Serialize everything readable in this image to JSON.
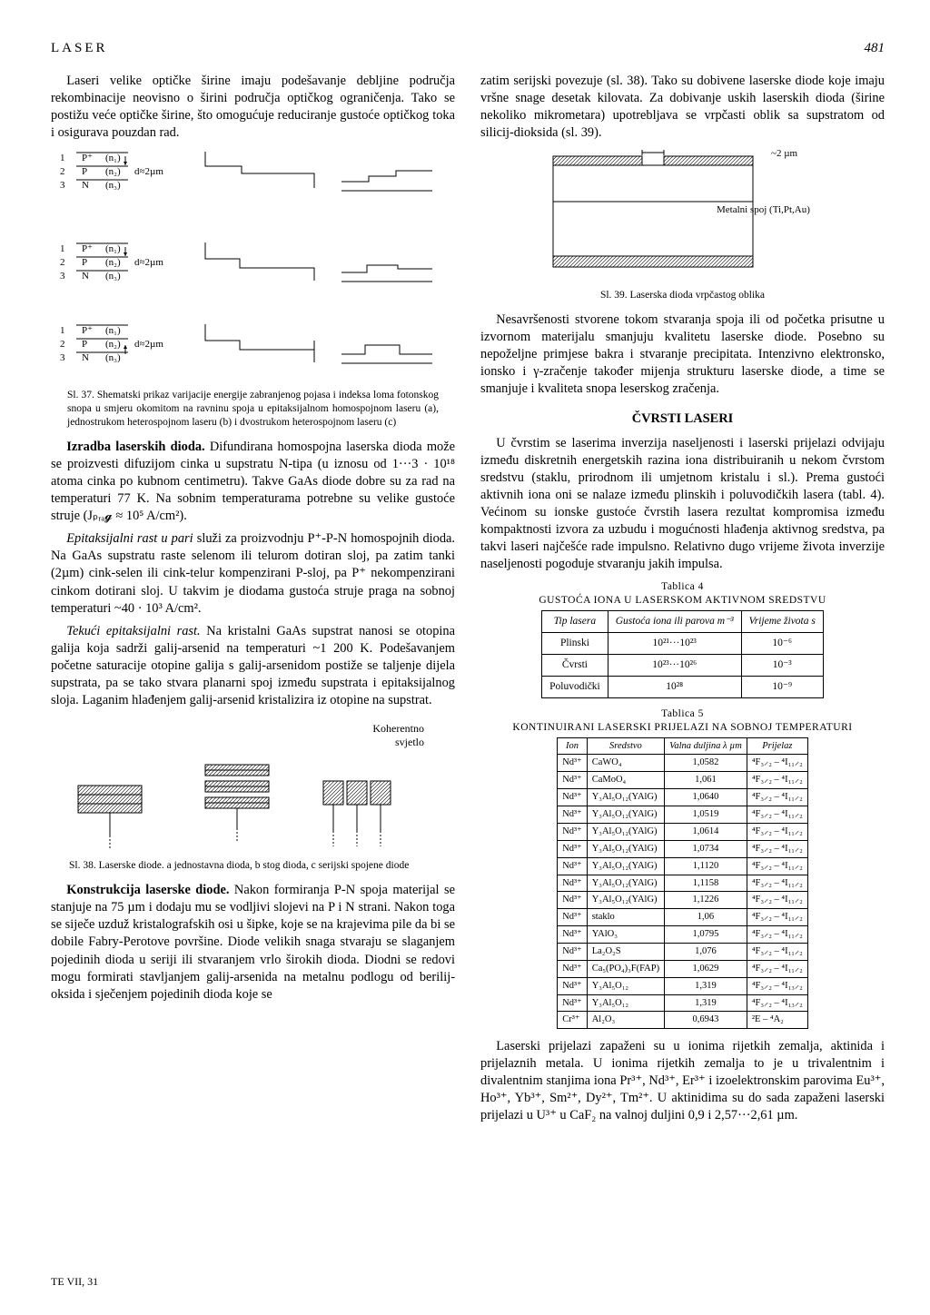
{
  "header": {
    "running": "LASER",
    "pageno": "481"
  },
  "left": {
    "p1": "Laseri velike optičke širine imaju podešavanje debljine područja rekombinacije neovisno o širini područja optičkog ograničenja. Tako se postižu veće optičke širine, što omogućuje reduciranje gustoće optičkog toka i osigurava pouzdan rad.",
    "fig37_caption": "Sl. 37. Shematski prikaz varijacije energije zabranjenog pojasa i indeksa loma fotonskog snopa u smjeru okomitom na ravninu spoja u epitaksijalnom homospojnom laseru (a), jednostrukom heterospojnom laseru (b) i dvostrukom heterospojnom laseru (c)",
    "p2a": "Izradba laserskih dioda.",
    "p2": " Difundirana homospojna laserska dioda može se proizvesti difuzijom cinka u supstratu N-tipa (u iznosu od 1···3 · 10¹⁸ atoma cinka po kubnom centimetru). Takve GaAs diode dobre su za rad na temperaturi 77 K. Na sobnim temperaturama potrebne su velike gustoće struje (Jₚᵣₐ𝓰 ≈ 10⁵ A/cm²).",
    "p3a": "Epitaksijalni rast u pari",
    "p3": " služi za proizvodnju P⁺-P-N homospojnih dioda. Na GaAs supstratu raste selenom ili telurom dotiran sloj, pa zatim tanki (2µm) cink-selen ili cink-telur kompenzirani P-sloj, pa P⁺ nekompenzirani cinkom dotirani sloj. U takvim je diodama gustoća struje praga na sobnoj temperaturi ~40 · 10³ A/cm².",
    "p4a": "Tekući epitaksijalni rast.",
    "p4": " Na kristalni GaAs supstrat nanosi se otopina galija koja sadrži galij-arsenid na temperaturi ~1 200 K. Podešavanjem početne saturacije otopine galija s galij-arsenidom postiže se taljenje dijela supstrata, pa se tako stvara planarni spoj između supstrata i epitaksijalnog sloja. Laganim hlađenjem galij-arsenid kristalizira iz otopine na supstrat.",
    "koherentno": "Koherentno\nsvjetlo",
    "fig38_caption": "Sl. 38. Laserske diode. a jednostavna dioda, b stog dioda, c serijski spojene diode",
    "p5a": "Konstrukcija laserske diode.",
    "p5": " Nakon formiranja P-N spoja materijal se stanjuje na 75 µm i dodaju mu se vodljivi slojevi na P i N strani. Nakon toga se siječe uzduž kristalografskih osi u šipke, koje se na krajevima pile da bi se dobile Fabry-Perotove površine. Diode velikih snaga stvaraju se slaganjem pojedinih dioda u seriji ili stvaranjem vrlo širokih dioda. Diodni se redovi mogu formirati stavljanjem galij-arsenida na metalnu podlogu od berilij-oksida i sječenjem pojedinih dioda koje se"
  },
  "right": {
    "p1": "zatim serijski povezuje (sl. 38). Tako su dobivene laserske diode koje imaju vršne snage desetak kilovata. Za dobivanje uskih laserskih dioda (širine nekoliko mikrometara) upotrebljava se vrpčasti oblik sa supstratom od silicij-dioksida (sl. 39).",
    "fig39_label_top": "Metalni spoj (Ti,Pt,Au)",
    "fig39_label_2um": "~2 µm",
    "fig39_caption": "Sl. 39. Laserska dioda vrpčastog oblika",
    "p2": "Nesavršenosti stvorene tokom stvaranja spoja ili od početka prisutne u izvornom materijalu smanjuju kvalitetu laserske diode. Posebno su nepoželjne primjese bakra i stvaranje precipitata. Intenzivno elektronsko, ionsko i γ-zračenje također mijenja strukturu laserske diode, a time se smanjuje i kvaliteta snopa leserskog zračenja.",
    "section": "ČVRSTI LASERI",
    "p3": "U čvrstim se laserima inverzija naseljenosti i laserski prijelazi odvijaju između diskretnih energetskih razina iona distribuiranih u nekom čvrstom sredstvu (staklu, prirodnom ili umjetnom kristalu i sl.). Prema gustoći aktivnih iona oni se nalaze između plinskih i poluvodičkih lasera (tabl. 4). Većinom su ionske gustoće čvrstih lasera rezultat kompromisa između kompaktnosti izvora za uzbudu i mogućnosti hlađenja aktivnog sredstva, pa takvi laseri najčešće rade impulsno. Relativno dugo vrijeme života inverzije naseljenosti pogoduje stvaranju jakih impulsa.",
    "t4_title_a": "Tablica 4",
    "t4_title_b": "GUSTOĆA IONA U LASERSKOM AKTIVNOM SREDSTVU",
    "t4_h1": "Tip lasera",
    "t4_h2": "Gustoća iona ili parova m⁻³",
    "t4_h3": "Vrijeme života s",
    "t4_r1c1": "Plinski",
    "t4_r1c2": "10²¹···10²³",
    "t4_r1c3": "10⁻⁶",
    "t4_r2c1": "Čvrsti",
    "t4_r2c2": "10²³···10²⁶",
    "t4_r2c3": "10⁻³",
    "t4_r3c1": "Poluvodički",
    "t4_r3c2": "10²⁸",
    "t4_r3c3": "10⁻⁹",
    "t5_title_a": "Tablica 5",
    "t5_title_b": "KONTINUIRANI LASERSKI PRIJELAZI NA SOBNOJ TEMPERATURI",
    "t5_h1": "Ion",
    "t5_h2": "Sredstvo",
    "t5_h3": "Valna duljina λ µm",
    "t5_h4": "Prijelaz",
    "t5_rows": [
      [
        "Nd³⁺",
        "CaWO₄",
        "1,0582",
        "⁴F₃⸝₂ – ⁴I₁₁⸝₂"
      ],
      [
        "Nd³⁺",
        "CaMoO₄",
        "1,061",
        "⁴F₃⸝₂ – ⁴I₁₁⸝₂"
      ],
      [
        "Nd³⁺",
        "Y₃Al₅O₁₂(YAlG)",
        "1,0640",
        "⁴F₃⸝₂ – ⁴I₁₁⸝₂"
      ],
      [
        "Nd³⁺",
        "Y₃Al₅O₁₂(YAlG)",
        "1,0519",
        "⁴F₃⸝₂ – ⁴I₁₁⸝₂"
      ],
      [
        "Nd³⁺",
        "Y₃Al₅O₁₂(YAlG)",
        "1,0614",
        "⁴F₃⸝₂ – ⁴I₁₁⸝₂"
      ],
      [
        "Nd³⁺",
        "Y₃Al₅O₁₂(YAlG)",
        "1,0734",
        "⁴F₃⸝₂ – ⁴I₁₁⸝₂"
      ],
      [
        "Nd³⁺",
        "Y₃Al₅O₁₂(YAlG)",
        "1,1120",
        "⁴F₃⸝₂ – ⁴I₁₁⸝₂"
      ],
      [
        "Nd³⁺",
        "Y₃Al₅O₁₂(YAlG)",
        "1,1158",
        "⁴F₃⸝₂ – ⁴I₁₁⸝₂"
      ],
      [
        "Nd³⁺",
        "Y₃Al₅O₁₂(YAlG)",
        "1,1226",
        "⁴F₃⸝₂ – ⁴I₁₁⸝₂"
      ],
      [
        "Nd³⁺",
        "staklo",
        "1,06",
        "⁴F₃⸝₂ – ⁴I₁₁⸝₂"
      ],
      [
        "Nd³⁺",
        "YAlO₃",
        "1,0795",
        "⁴F₃⸝₂ – ⁴I₁₁⸝₂"
      ],
      [
        "Nd³⁺",
        "La₂O₂S",
        "1,076",
        "⁴F₃⸝₂ – ⁴I₁₁⸝₂"
      ],
      [
        "Nd³⁺",
        "Ca₅(PO₄)₃F(FAP)",
        "1,0629",
        "⁴F₃⸝₂ – ⁴I₁₁⸝₂"
      ],
      [
        "Nd³⁺",
        "Y₃Al₅O₁₂",
        "1,319",
        "⁴F₃⸝₂ – ⁴I₁₃⸝₂"
      ],
      [
        "Nd³⁺",
        "Y₃Al₅O₁₂",
        "1,319",
        "⁴F₃⸝₂ – ⁴I₁₃⸝₂"
      ],
      [
        "Cr³⁺",
        "Al₂O₃",
        "0,6943",
        "²E – ⁴A₂"
      ]
    ],
    "p4": "Laserski prijelazi zapaženi su u ionima rijetkih zemalja, aktinida i prijelaznih metala. U ionima rijetkih zemalja to je u trivalentnim i divalentnim stanjima iona Pr³⁺, Nd³⁺, Er³⁺ i izoelektronskim parovima Eu³⁺, Ho³⁺, Yb³⁺, Sm²⁺, Dy²⁺, Tm²⁺. U aktinidima su do sada zapaženi laserski prijelazi u U³⁺ u CaF₂ na valnoj duljini 0,9 i 2,57···2,61 µm."
  },
  "footer": "TE VII, 31",
  "figs": {
    "sl37": {
      "rows": [
        {
          "id": "1",
          "label": "P⁺",
          "n": "(n₁)"
        },
        {
          "id": "2",
          "label": "P",
          "n": "(n₂)"
        },
        {
          "id": "3",
          "label": "N",
          "n": "(n₃)"
        }
      ],
      "thickness_label": "d≈2µm",
      "stroke": "#000"
    },
    "sl38": {
      "stroke": "#000"
    },
    "sl39": {
      "stroke": "#000"
    }
  }
}
